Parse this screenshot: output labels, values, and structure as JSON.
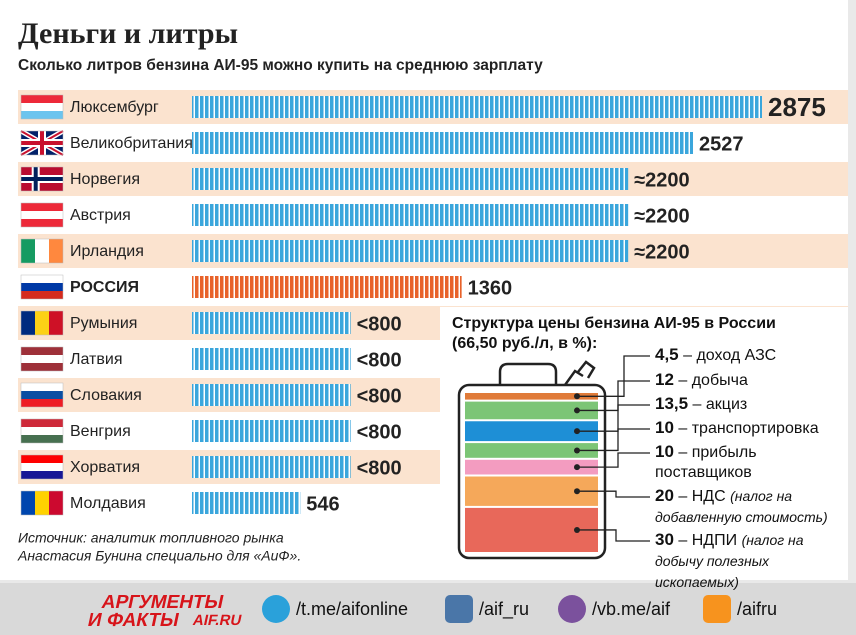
{
  "chart_data": [
    {
      "type": "bar",
      "orientation": "horizontal",
      "title": "Деньги и литры",
      "subtitle": "Сколько литров бензина АИ-95 можно купить на среднюю зарплату",
      "categories": [
        "Люксембург",
        "Великобритания",
        "Норвегия",
        "Австрия",
        "Ирландия",
        "РОССИЯ",
        "Румыния",
        "Латвия",
        "Словакия",
        "Венгрия",
        "Хорватия",
        "Молдавия"
      ],
      "values": [
        2875,
        2527,
        2200,
        2200,
        2200,
        1360,
        800,
        800,
        800,
        800,
        800,
        546
      ],
      "value_labels": [
        "2875",
        "2527",
        "≈2200",
        "≈2200",
        "≈2200",
        "1360",
        "<800",
        "<800",
        "<800",
        "<800",
        "<800",
        "546"
      ],
      "colors": [
        "#3aa6dc",
        "#3aa6dc",
        "#3aa6dc",
        "#3aa6dc",
        "#3aa6dc",
        "#e8622a",
        "#3aa6dc",
        "#3aa6dc",
        "#3aa6dc",
        "#3aa6dc",
        "#3aa6dc",
        "#3aa6dc"
      ]
    },
    {
      "type": "stacked-bar",
      "title": "Структура цены бензина АИ-95 в России (66,50 руб./л, в %):",
      "categories": [
        "– доход АЗС",
        "– добыча",
        "– акциз",
        "– транспортировка",
        "– прибыль поставщиков",
        "– НДС",
        "– НДПИ"
      ],
      "values": [
        4.5,
        12,
        13.5,
        10,
        10,
        20,
        30
      ],
      "value_labels": [
        "4,5",
        "12",
        "13,5",
        "10",
        "10",
        "20",
        "30"
      ],
      "notes": [
        null,
        null,
        null,
        null,
        null,
        "(налог на добавленную стоимость)",
        "(налог на добычу полезных ископаемых)"
      ],
      "colors": [
        "#e07b39",
        "#7cc576",
        "#1e8fd6",
        "#7cc576",
        "#f39cc0",
        "#f5a85a",
        "#e8685a"
      ]
    }
  ],
  "source": [
    "Источник: аналитик топливного рынка",
    "Анастасия Бунина специально для «АиФ»."
  ],
  "footer": {
    "logo": [
      "АРГУМЕНТЫ",
      "И ФАКТЫ",
      "AIF.RU"
    ],
    "links": [
      "/t.me/aifonline",
      "/aif_ru",
      "/vb.me/aif",
      "/aifru"
    ]
  }
}
